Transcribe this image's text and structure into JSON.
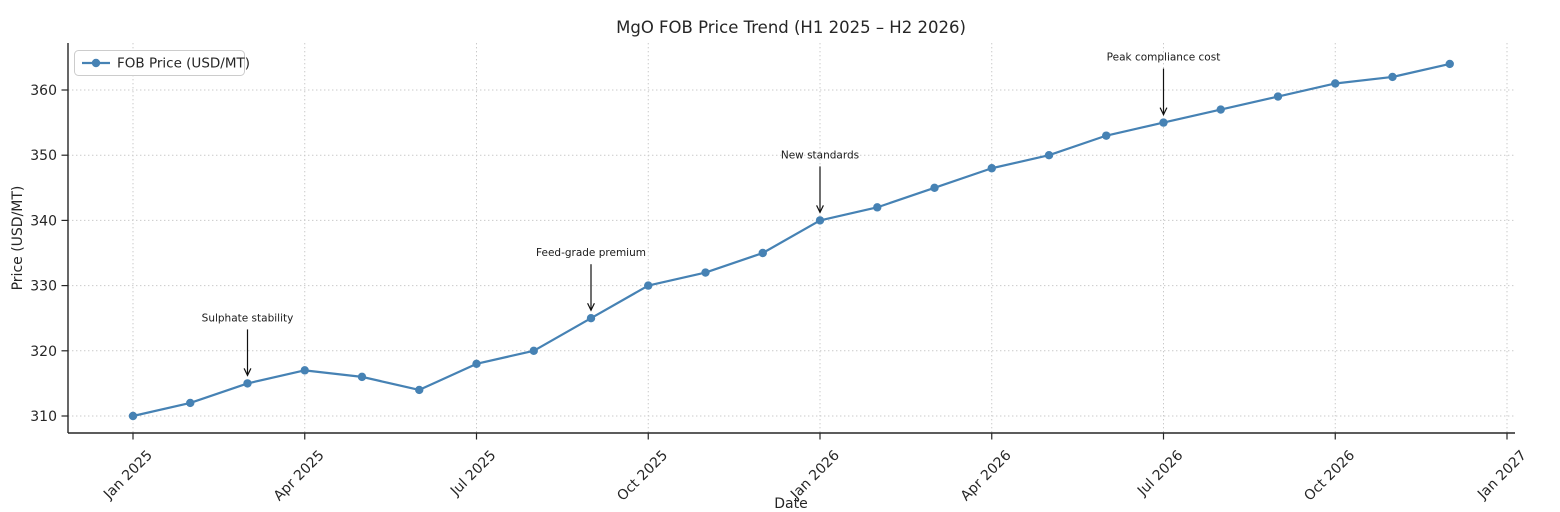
{
  "chart_data": {
    "type": "line",
    "title": "MgO FOB Price Trend (H1 2025 – H2 2026)",
    "xlabel": "Date",
    "ylabel": "Price (USD/MT)",
    "x": [
      "Jan 2025",
      "Feb 2025",
      "Mar 2025",
      "Apr 2025",
      "May 2025",
      "Jun 2025",
      "Jul 2025",
      "Aug 2025",
      "Sep 2025",
      "Oct 2025",
      "Nov 2025",
      "Dec 2025",
      "Jan 2026",
      "Feb 2026",
      "Mar 2026",
      "Apr 2026",
      "May 2026",
      "Jun 2026",
      "Jul 2026",
      "Aug 2026",
      "Sep 2026",
      "Oct 2026",
      "Nov 2026",
      "Dec 2026"
    ],
    "series": [
      {
        "name": "FOB Price (USD/MT)",
        "color": "#4682b4",
        "values": [
          310,
          312,
          315,
          317,
          316,
          314,
          318,
          320,
          325,
          330,
          332,
          335,
          340,
          342,
          345,
          348,
          350,
          353,
          355,
          357,
          359,
          361,
          362,
          364
        ]
      }
    ],
    "x_ticks": {
      "indices": [
        0,
        3,
        6,
        9,
        12,
        15,
        18,
        21,
        24
      ],
      "labels": [
        "Jan 2025",
        "Apr 2025",
        "Jul 2025",
        "Oct 2025",
        "Jan 2026",
        "Apr 2026",
        "Jul 2026",
        "Oct 2026",
        "Jan 2027"
      ],
      "rotation": 45
    },
    "y_ticks": [
      310,
      320,
      330,
      340,
      350,
      360
    ],
    "ylim": [
      307,
      367.5
    ],
    "grid": {
      "show": true,
      "style": "dotted"
    },
    "legend": {
      "position": "upper left"
    },
    "annotations": [
      {
        "label": "Sulphate stability",
        "x_index": 2,
        "value": 315
      },
      {
        "label": "Feed-grade premium",
        "x_index": 8,
        "value": 325
      },
      {
        "label": "New standards",
        "x_index": 12,
        "value": 340
      },
      {
        "label": "Peak compliance cost",
        "x_index": 18,
        "value": 355
      }
    ],
    "colors": {
      "line": "#4682b4",
      "marker": "#4682b4",
      "grid": "#c9c9c9",
      "spine": "#262626",
      "text": "#262626",
      "annotation": "#111111",
      "legend_border": "#cccccc",
      "background": "#ffffff"
    }
  }
}
